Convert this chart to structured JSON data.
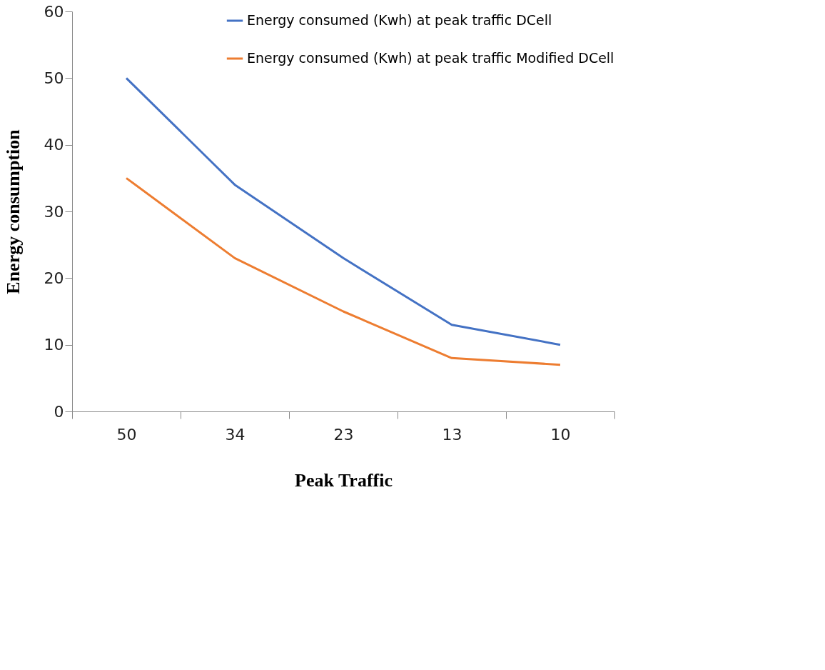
{
  "chart_data": {
    "type": "line",
    "xlabel": "Peak Traffic",
    "ylabel": "Energy consumption",
    "categories": [
      "50",
      "34",
      "23",
      "13",
      "10"
    ],
    "series": [
      {
        "name": "Energy consumed (Kwh) at peak traffic DCell",
        "color": "#4472c4",
        "values": [
          50,
          34,
          23,
          13,
          10
        ]
      },
      {
        "name": "Energy consumed (Kwh) at peak traffic Modified DCell",
        "color": "#ed7d31",
        "values": [
          35,
          23,
          15,
          8,
          7
        ]
      }
    ],
    "ylim": [
      0,
      60
    ],
    "yticks": [
      0,
      10,
      20,
      30,
      40,
      50,
      60
    ],
    "grid": false,
    "legend": "top right",
    "marker": "none",
    "line_style": "solid"
  }
}
